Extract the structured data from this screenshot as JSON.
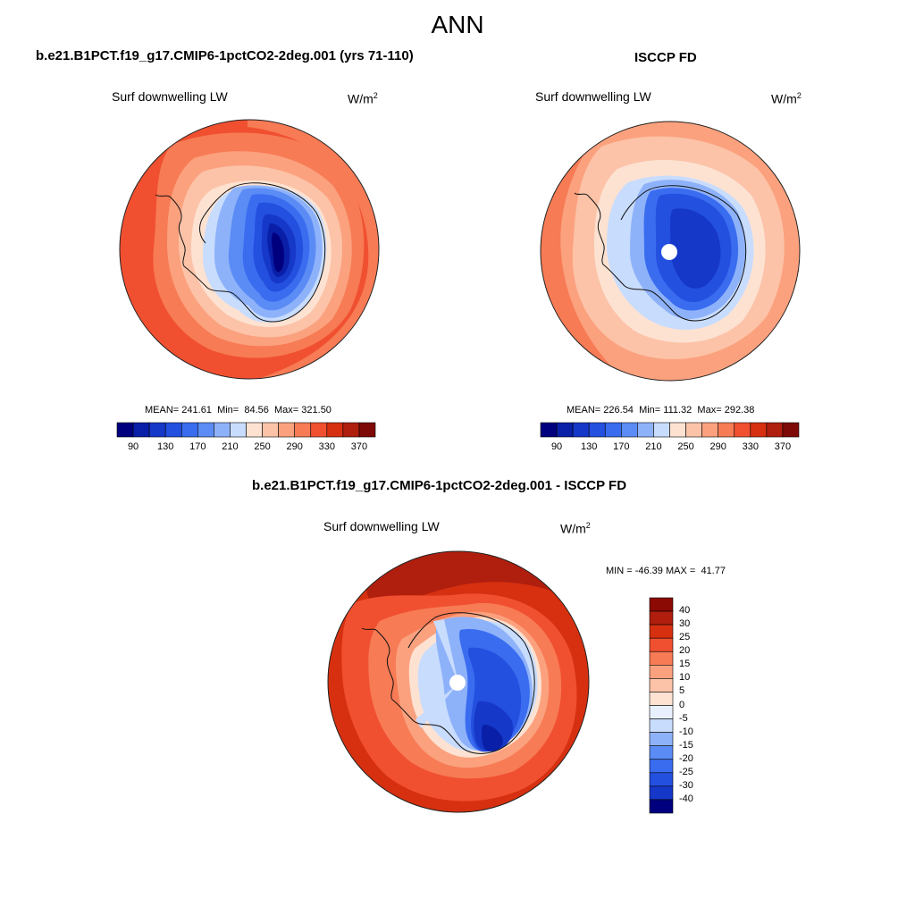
{
  "figure": {
    "title": "ANN"
  },
  "panels": {
    "model": {
      "case_title": "b.e21.B1PCT.f19_g17.CMIP6-1pctCO2-2deg.001 (yrs 71-110)",
      "variable": "Surf downwelling LW",
      "units_base": "W/m",
      "units_exp": "2",
      "stats": {
        "mean_label": "MEAN=",
        "mean": "241.61",
        "min_label": "Min=",
        "min": "84.56",
        "max_label": "Max=",
        "max": "321.50"
      }
    },
    "obs": {
      "case_title": "ISCCP FD",
      "variable": "Surf downwelling LW",
      "units_base": "W/m",
      "units_exp": "2",
      "stats": {
        "mean_label": "MEAN=",
        "mean": "226.54",
        "min_label": "Min=",
        "min": "111.32",
        "max_label": "Max=",
        "max": "292.38"
      }
    },
    "diff": {
      "case_title": "b.e21.B1PCT.f19_g17.CMIP6-1pctCO2-2deg.001 - ISCCP FD",
      "variable": "Surf downwelling LW",
      "units_base": "W/m",
      "units_exp": "2",
      "stats": {
        "min_label": "MIN =",
        "min": "-46.39",
        "max_label": "MAX =",
        "max": "41.77"
      }
    }
  },
  "chart_data": {
    "type": "heatmap",
    "projection": "south-polar-stereographic",
    "region": "Antarctica / Southern Ocean",
    "colorbars": {
      "abs": {
        "orientation": "horizontal",
        "levels": [
          90,
          110,
          130,
          150,
          170,
          190,
          210,
          230,
          250,
          270,
          290,
          310,
          330,
          350,
          370
        ],
        "tick_labels": [
          "90",
          "130",
          "170",
          "210",
          "250",
          "290",
          "330",
          "370"
        ],
        "colors": [
          "#00007f",
          "#0a1fa8",
          "#1638c8",
          "#2450e0",
          "#3a6cf0",
          "#5b8cf5",
          "#8eb2fa",
          "#c8dcfd",
          "#fde2d2",
          "#fcc3a8",
          "#fba17e",
          "#f77b55",
          "#f05030",
          "#d63010",
          "#b01e0e",
          "#7d0a06"
        ]
      },
      "diff": {
        "orientation": "vertical",
        "levels": [
          -40,
          -30,
          -25,
          -20,
          -15,
          -10,
          -5,
          0,
          5,
          10,
          15,
          20,
          25,
          30,
          40
        ],
        "tick_labels": [
          "40",
          "30",
          "25",
          "20",
          "15",
          "10",
          "5",
          "0",
          "-5",
          "-10",
          "-15",
          "-20",
          "-25",
          "-30",
          "-40"
        ],
        "colors_top_to_bottom": [
          "#8b0a04",
          "#b01e0e",
          "#d63010",
          "#f05030",
          "#f77b55",
          "#fba17e",
          "#fcc3a8",
          "#fde2d2",
          "#e8f0fe",
          "#c8dcfd",
          "#8eb2fa",
          "#5b8cf5",
          "#3a6cf0",
          "#2450e0",
          "#1638c8",
          "#00007f"
        ]
      }
    },
    "series": [
      {
        "name": "model",
        "mean": 241.61,
        "min": 84.56,
        "max": 321.5
      },
      {
        "name": "ISCCP FD",
        "mean": 226.54,
        "min": 111.32,
        "max": 292.38
      },
      {
        "name": "model - ISCCP FD",
        "min": -46.39,
        "max": 41.77
      }
    ]
  }
}
